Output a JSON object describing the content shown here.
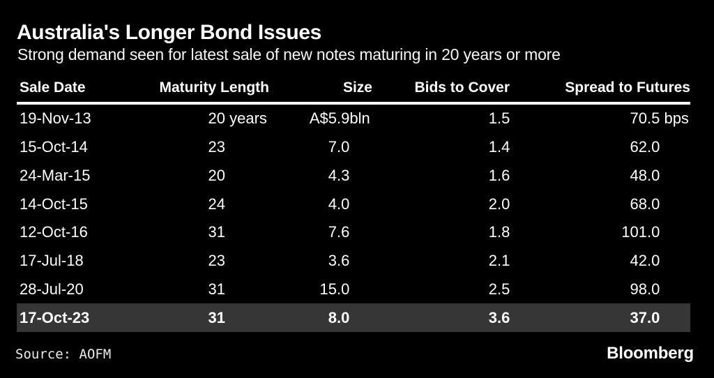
{
  "chart_data": {
    "type": "table",
    "title": "Australia's Longer Bond Issues",
    "subtitle": "Strong demand seen for latest sale of new notes maturing in 20 years or more",
    "columns": [
      "Sale Date",
      "Maturity Length",
      "Size",
      "Bids to Cover",
      "Spread to Futures"
    ],
    "rows": [
      [
        "19-Nov-13",
        "20 years",
        "A$5.9bln",
        "1.5",
        "70.5 bps"
      ],
      [
        "15-Oct-14",
        "23",
        "7.0",
        "1.4",
        "62.0"
      ],
      [
        "24-Mar-15",
        "20",
        "4.3",
        "1.6",
        "48.0"
      ],
      [
        "14-Oct-15",
        "24",
        "4.0",
        "2.0",
        "68.0"
      ],
      [
        "12-Oct-16",
        "31",
        "7.6",
        "1.8",
        "101.0"
      ],
      [
        "17-Jul-18",
        "23",
        "3.6",
        "2.1",
        "42.0"
      ],
      [
        "28-Jul-20",
        "31",
        "15.0",
        "2.5",
        "98.0"
      ],
      [
        "17-Oct-23",
        "31",
        "8.0",
        "3.6",
        "37.0"
      ]
    ],
    "highlighted_row_index": 7,
    "layout": {
      "grid": "off",
      "legend": "none",
      "value_alignment": "decimal-aligned right columns"
    }
  },
  "footer": {
    "source": "Source: AOFM",
    "brand": "Bloomberg"
  },
  "colors": {
    "background": "#000000",
    "text": "#ffffff",
    "rule": "#ffffff",
    "highlight_row_bg": "#363636",
    "source_text": "#ececec"
  }
}
